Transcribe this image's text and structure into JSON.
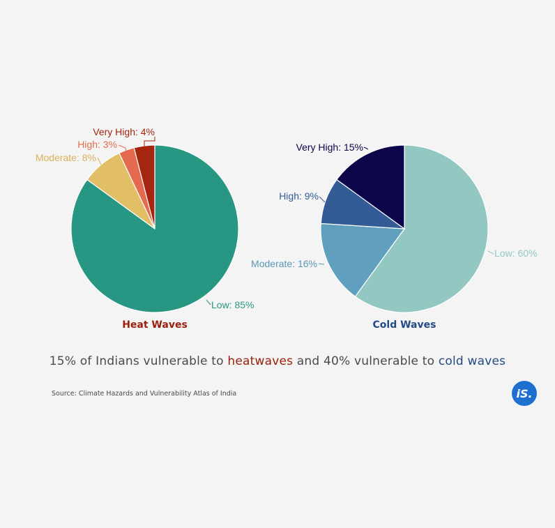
{
  "colors": {
    "heat_title": "#9b1d0c",
    "cold_title": "#234a86",
    "headline_text": "#4a4a4a",
    "logo_bg": "#1f6fd1"
  },
  "chart_data": [
    {
      "type": "pie",
      "title": "Heat Waves",
      "title_color": "#9b1d0c",
      "unit": "%",
      "slices": [
        {
          "name": "Low",
          "value": 85,
          "color": "#279784",
          "label_color": "#279784"
        },
        {
          "name": "Moderate",
          "value": 8,
          "color": "#e2be67",
          "label_color": "#d8b257"
        },
        {
          "name": "High",
          "value": 3,
          "color": "#e36a4f",
          "label_color": "#e36a4f"
        },
        {
          "name": "Very High",
          "value": 4,
          "color": "#a5250f",
          "label_color": "#a5250f"
        }
      ]
    },
    {
      "type": "pie",
      "title": "Cold Waves",
      "title_color": "#234a86",
      "unit": "%",
      "slices": [
        {
          "name": "Low",
          "value": 60,
          "color": "#93c8c2",
          "label_color": "#93c8c2"
        },
        {
          "name": "Moderate",
          "value": 16,
          "color": "#609fbd",
          "label_color": "#5b98b6"
        },
        {
          "name": "High",
          "value": 9,
          "color": "#335b95",
          "label_color": "#335b95"
        },
        {
          "name": "Very High",
          "value": 15,
          "color": "#0c0549",
          "label_color": "#0c0549"
        }
      ]
    }
  ],
  "headline": {
    "part1": "15% of Indians vulnerable to ",
    "heat": "heatwaves",
    "part2": " and 40% vulnerable to ",
    "cold": "cold waves",
    "heat_color": "#9b1d0c",
    "cold_color": "#234a86"
  },
  "source": "Source: Climate Hazards and Vulnerability Atlas of India",
  "logo": "iS."
}
